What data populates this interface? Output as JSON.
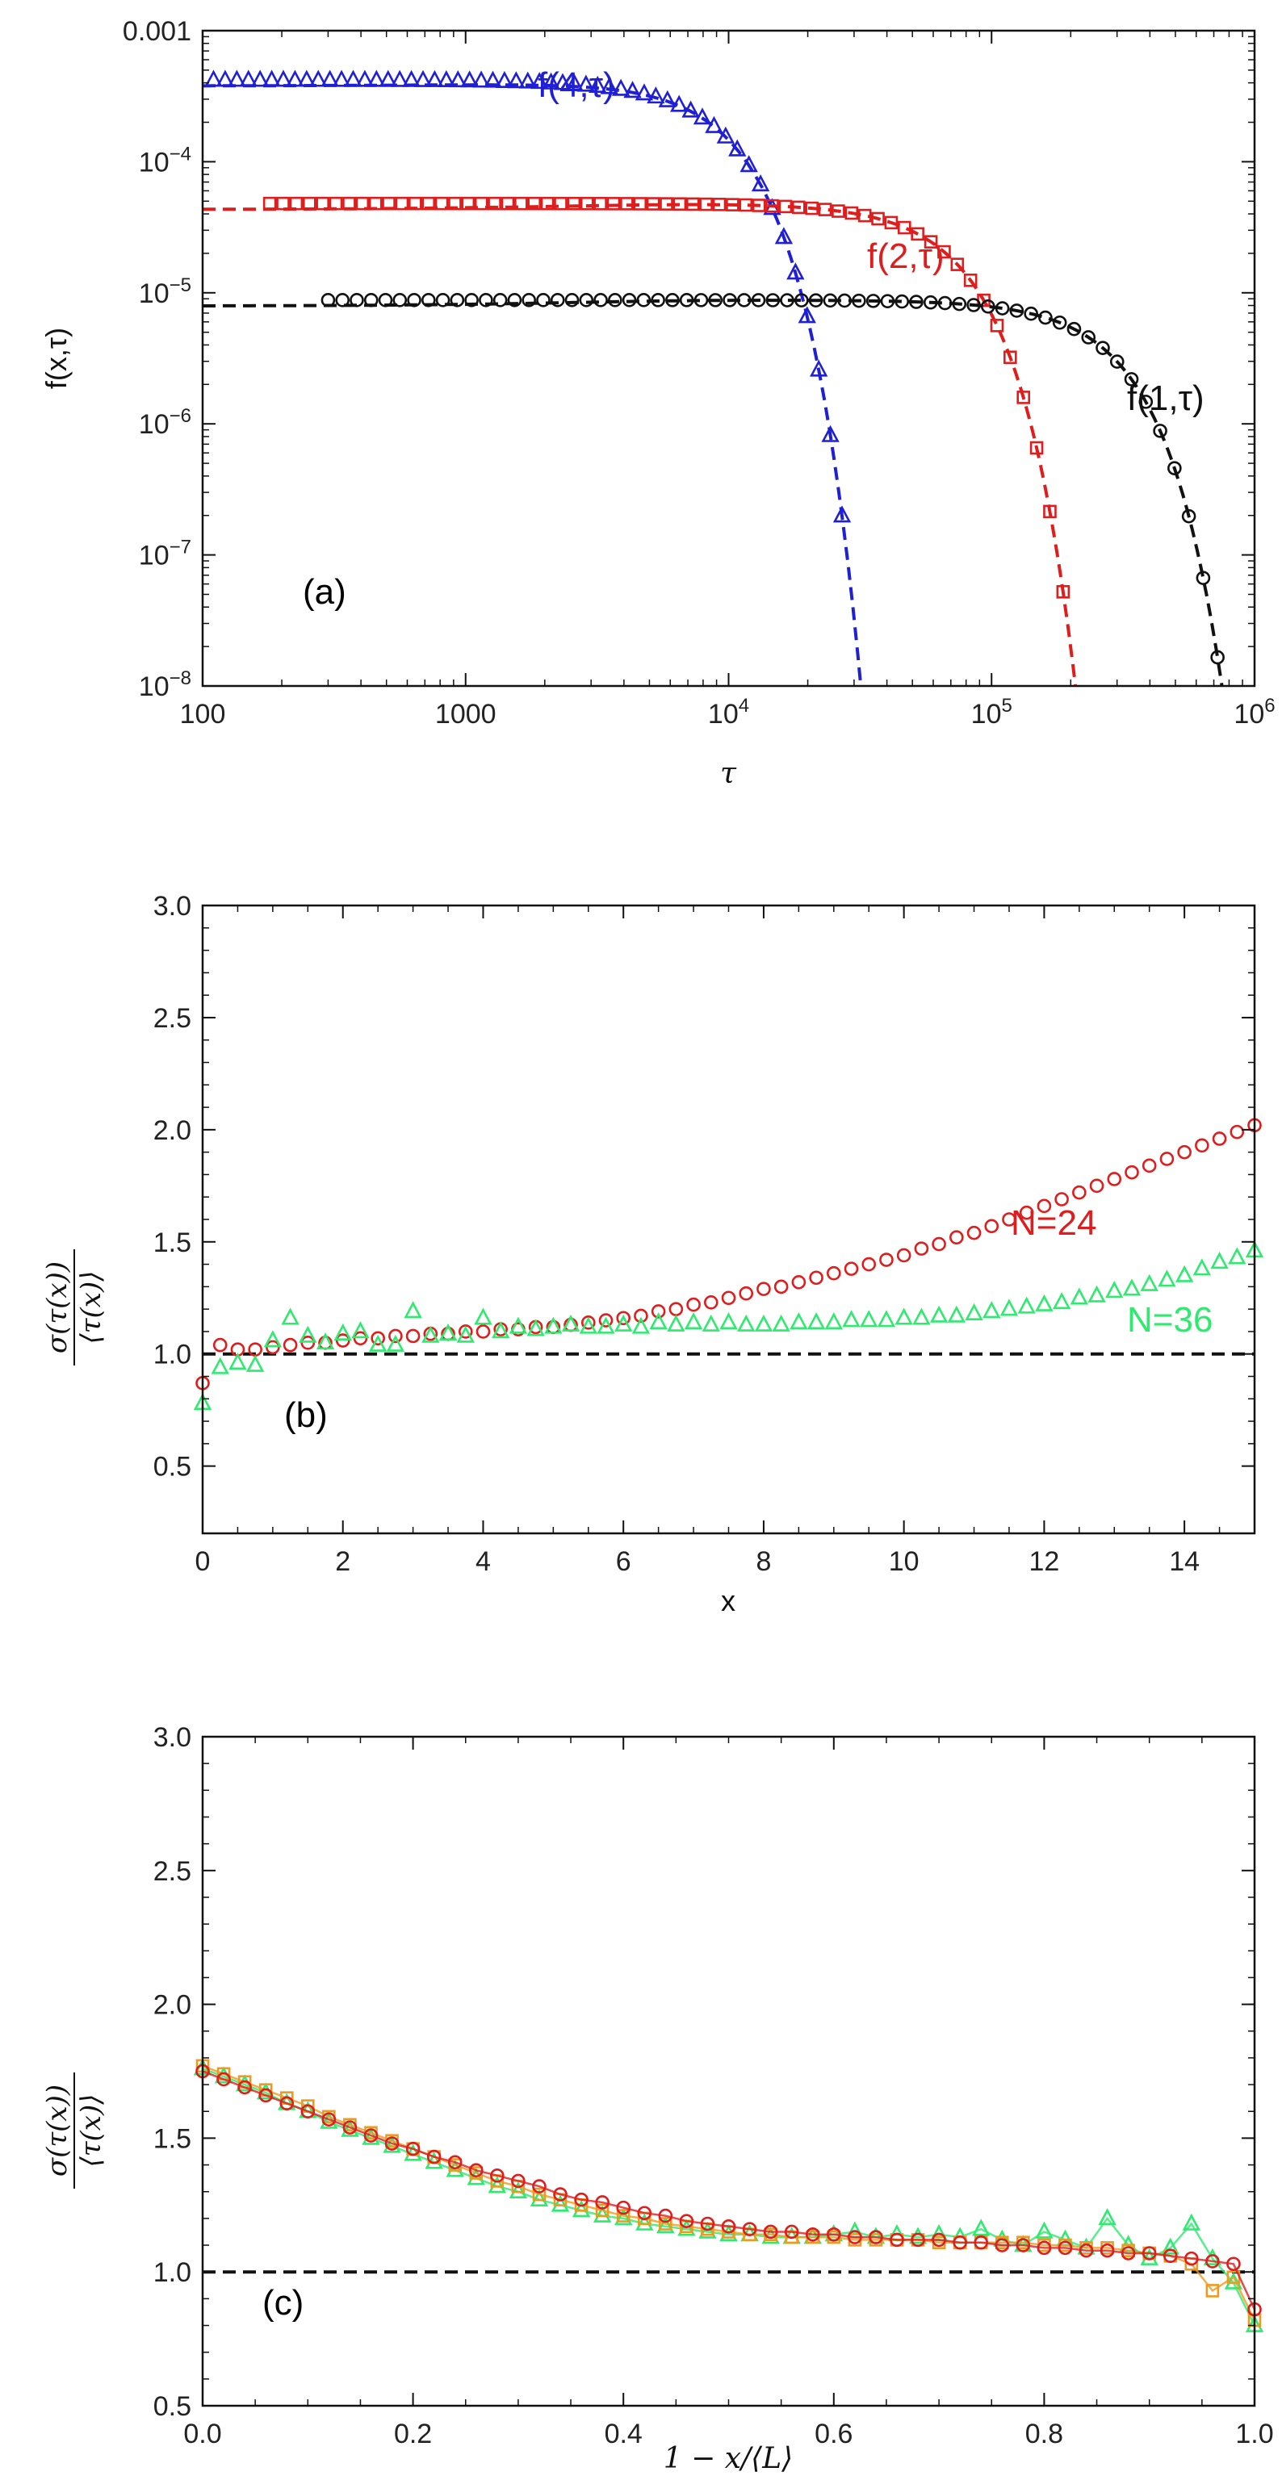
{
  "colors": {
    "black": "#111111",
    "blue": "#1f1fd6",
    "red": "#e01d1d",
    "green": "#2eea6f",
    "orange": "#ee9a1e"
  },
  "chart_data": [
    {
      "type": "scatter",
      "panel_label": "(a)",
      "xlabel": "τ",
      "ylabel": "f(x,τ)",
      "xscale": "log",
      "yscale": "log",
      "xlim": [
        100,
        1000000
      ],
      "ylim": [
        1e-08,
        0.001
      ],
      "x_tick_labels": [
        {
          "label": "100",
          "value": 100
        },
        {
          "label": "1000",
          "value": 1000
        },
        {
          "label": "10^4",
          "value": 10000
        },
        {
          "label": "10^5",
          "value": 100000
        },
        {
          "label": "10^6",
          "value": 1000000
        }
      ],
      "y_tick_labels": [
        {
          "label": "0.001",
          "value": 0.001
        },
        {
          "label": "10^-4",
          "value": 0.0001
        },
        {
          "label": "10^-5",
          "value": 1e-05
        },
        {
          "label": "10^-6",
          "value": 1e-06
        },
        {
          "label": "10^-7",
          "value": 1e-07
        },
        {
          "label": "10^-8",
          "value": 1e-08
        }
      ],
      "series": [
        {
          "name": "f(4,τ)",
          "marker": "triangle",
          "color": "#1f1fd6",
          "A": 0.00042,
          "c": 1.05e-08,
          "xmin": 110,
          "xmax": 27000
        },
        {
          "name": "f(2,τ)",
          "marker": "square",
          "color": "#e01d1d",
          "A": 4.8e-05,
          "c": 1.95e-10,
          "xmin": 180,
          "xmax": 210000
        },
        {
          "name": "f(1,τ)",
          "marker": "circle",
          "color": "#111111",
          "A": 8.8e-06,
          "c": 1.2e-11,
          "xmin": 300,
          "xmax": 820000
        }
      ],
      "annotations": [
        {
          "text": "f(4,τ)",
          "color": "#1f1fd6"
        },
        {
          "text": "f(2,τ)",
          "color": "#e01d1d"
        },
        {
          "text": "f(1,τ)",
          "color": "#111111"
        }
      ]
    },
    {
      "type": "scatter",
      "panel_label": "(b)",
      "xlabel": "x",
      "ylabel": "σ(τ(x)) / ⟨τ(x)⟩",
      "xlim": [
        0,
        15
      ],
      "ylim": [
        0.2,
        3.0
      ],
      "x_ticks": [
        0,
        2,
        4,
        6,
        8,
        10,
        12,
        14
      ],
      "y_ticks": [
        0.5,
        1.0,
        1.5,
        2.0,
        2.5,
        3.0
      ],
      "reference_line": 1.0,
      "series": [
        {
          "name": "N=24",
          "marker": "circle",
          "color": "#e01d1d",
          "x": [
            0.0,
            0.25,
            0.5,
            0.75,
            1.0,
            1.25,
            1.5,
            1.75,
            2.0,
            2.25,
            2.5,
            2.75,
            3.0,
            3.25,
            3.5,
            3.75,
            4.0,
            4.25,
            4.5,
            4.75,
            5.0,
            5.25,
            5.5,
            5.75,
            6.0,
            6.25,
            6.5,
            6.75,
            7.0,
            7.25,
            7.5,
            7.75,
            8.0,
            8.25,
            8.5,
            8.75,
            9.0,
            9.25,
            9.5,
            9.75,
            10.0,
            10.25,
            10.5,
            10.75,
            11.0,
            11.25,
            11.5,
            11.75,
            12.0,
            12.25,
            12.5,
            12.75,
            13.0,
            13.25,
            13.5,
            13.75,
            14.0,
            14.25,
            14.5,
            14.75,
            15.0
          ],
          "y": [
            0.87,
            1.04,
            1.02,
            1.02,
            1.03,
            1.04,
            1.05,
            1.05,
            1.06,
            1.07,
            1.07,
            1.08,
            1.08,
            1.09,
            1.09,
            1.1,
            1.1,
            1.11,
            1.11,
            1.12,
            1.12,
            1.13,
            1.14,
            1.15,
            1.16,
            1.17,
            1.19,
            1.2,
            1.22,
            1.23,
            1.25,
            1.27,
            1.29,
            1.3,
            1.32,
            1.34,
            1.36,
            1.38,
            1.4,
            1.42,
            1.44,
            1.47,
            1.49,
            1.52,
            1.54,
            1.57,
            1.6,
            1.63,
            1.66,
            1.69,
            1.72,
            1.75,
            1.78,
            1.81,
            1.84,
            1.87,
            1.9,
            1.93,
            1.96,
            1.99,
            2.02
          ]
        },
        {
          "name": "N=36",
          "marker": "triangle",
          "color": "#2eea6f",
          "x": [
            0.0,
            0.25,
            0.5,
            0.75,
            1.0,
            1.25,
            1.5,
            1.75,
            2.0,
            2.25,
            2.5,
            2.75,
            3.0,
            3.25,
            3.5,
            3.75,
            4.0,
            4.25,
            4.5,
            4.75,
            5.0,
            5.25,
            5.5,
            5.75,
            6.0,
            6.25,
            6.5,
            6.75,
            7.0,
            7.25,
            7.5,
            7.75,
            8.0,
            8.25,
            8.5,
            8.75,
            9.0,
            9.25,
            9.5,
            9.75,
            10.0,
            10.25,
            10.5,
            10.75,
            11.0,
            11.25,
            11.5,
            11.75,
            12.0,
            12.25,
            12.5,
            12.75,
            13.0,
            13.25,
            13.5,
            13.75,
            14.0,
            14.25,
            14.5,
            14.75,
            15.0
          ],
          "y": [
            0.78,
            0.94,
            0.96,
            0.95,
            1.06,
            1.16,
            1.08,
            1.05,
            1.09,
            1.1,
            1.04,
            1.04,
            1.19,
            1.08,
            1.09,
            1.08,
            1.16,
            1.1,
            1.12,
            1.11,
            1.12,
            1.13,
            1.12,
            1.12,
            1.13,
            1.12,
            1.14,
            1.13,
            1.14,
            1.13,
            1.14,
            1.13,
            1.13,
            1.13,
            1.14,
            1.14,
            1.14,
            1.15,
            1.15,
            1.15,
            1.16,
            1.16,
            1.17,
            1.17,
            1.18,
            1.19,
            1.2,
            1.21,
            1.22,
            1.23,
            1.25,
            1.26,
            1.28,
            1.29,
            1.31,
            1.33,
            1.35,
            1.38,
            1.41,
            1.43,
            1.46
          ]
        }
      ],
      "annotations": [
        {
          "text": "N=24",
          "color": "#e01d1d"
        },
        {
          "text": "N=36",
          "color": "#2eea6f"
        }
      ]
    },
    {
      "type": "scatter",
      "panel_label": "(c)",
      "xlabel": "1 − x/⟨L⟩",
      "ylabel": "σ(τ(x)) / ⟨τ(x)⟩",
      "xlim": [
        0,
        1
      ],
      "ylim": [
        0.5,
        3.0
      ],
      "x_ticks": [
        0.0,
        0.2,
        0.4,
        0.6,
        0.8,
        1.0
      ],
      "y_ticks": [
        0.5,
        1.0,
        1.5,
        2.0,
        2.5,
        3.0
      ],
      "reference_line": 1.0,
      "series": [
        {
          "name": "green",
          "marker": "triangle",
          "color": "#2eea6f",
          "x": [
            0.0,
            0.02,
            0.04,
            0.06,
            0.08,
            0.1,
            0.12,
            0.14,
            0.16,
            0.18,
            0.2,
            0.22,
            0.24,
            0.26,
            0.28,
            0.3,
            0.32,
            0.34,
            0.36,
            0.38,
            0.4,
            0.42,
            0.44,
            0.46,
            0.48,
            0.5,
            0.52,
            0.54,
            0.56,
            0.58,
            0.6,
            0.62,
            0.64,
            0.66,
            0.68,
            0.7,
            0.72,
            0.74,
            0.76,
            0.78,
            0.8,
            0.82,
            0.84,
            0.86,
            0.88,
            0.9,
            0.92,
            0.94,
            0.96,
            0.98,
            1.0
          ],
          "y": [
            1.76,
            1.73,
            1.7,
            1.67,
            1.63,
            1.6,
            1.56,
            1.53,
            1.5,
            1.47,
            1.44,
            1.41,
            1.38,
            1.35,
            1.32,
            1.3,
            1.27,
            1.25,
            1.23,
            1.21,
            1.2,
            1.18,
            1.17,
            1.16,
            1.15,
            1.14,
            1.14,
            1.13,
            1.13,
            1.13,
            1.14,
            1.15,
            1.13,
            1.14,
            1.13,
            1.14,
            1.13,
            1.16,
            1.12,
            1.1,
            1.15,
            1.12,
            1.09,
            1.2,
            1.1,
            1.05,
            1.09,
            1.18,
            1.05,
            0.96,
            0.8
          ]
        },
        {
          "name": "orange",
          "marker": "square",
          "color": "#ee9a1e",
          "x": [
            0.0,
            0.02,
            0.04,
            0.06,
            0.08,
            0.1,
            0.12,
            0.14,
            0.16,
            0.18,
            0.2,
            0.22,
            0.24,
            0.26,
            0.28,
            0.3,
            0.32,
            0.34,
            0.36,
            0.38,
            0.4,
            0.42,
            0.44,
            0.46,
            0.48,
            0.5,
            0.52,
            0.54,
            0.56,
            0.58,
            0.6,
            0.62,
            0.64,
            0.66,
            0.68,
            0.7,
            0.72,
            0.74,
            0.76,
            0.78,
            0.8,
            0.82,
            0.84,
            0.86,
            0.88,
            0.9,
            0.92,
            0.94,
            0.96,
            0.98,
            1.0
          ],
          "y": [
            1.77,
            1.74,
            1.71,
            1.68,
            1.65,
            1.62,
            1.58,
            1.55,
            1.52,
            1.49,
            1.46,
            1.43,
            1.4,
            1.37,
            1.34,
            1.32,
            1.29,
            1.27,
            1.25,
            1.23,
            1.21,
            1.2,
            1.18,
            1.17,
            1.16,
            1.15,
            1.14,
            1.14,
            1.13,
            1.13,
            1.13,
            1.12,
            1.12,
            1.12,
            1.12,
            1.11,
            1.11,
            1.11,
            1.11,
            1.11,
            1.1,
            1.1,
            1.09,
            1.09,
            1.08,
            1.07,
            1.06,
            1.03,
            0.93,
            0.98,
            0.82
          ]
        },
        {
          "name": "red",
          "marker": "circle",
          "color": "#e01d1d",
          "x": [
            0.0,
            0.02,
            0.04,
            0.06,
            0.08,
            0.1,
            0.12,
            0.14,
            0.16,
            0.18,
            0.2,
            0.22,
            0.24,
            0.26,
            0.28,
            0.3,
            0.32,
            0.34,
            0.36,
            0.38,
            0.4,
            0.42,
            0.44,
            0.46,
            0.48,
            0.5,
            0.52,
            0.54,
            0.56,
            0.58,
            0.6,
            0.62,
            0.64,
            0.66,
            0.68,
            0.7,
            0.72,
            0.74,
            0.76,
            0.78,
            0.8,
            0.82,
            0.84,
            0.86,
            0.88,
            0.9,
            0.92,
            0.94,
            0.96,
            0.98,
            1.0
          ],
          "y": [
            1.75,
            1.72,
            1.69,
            1.66,
            1.63,
            1.6,
            1.57,
            1.54,
            1.51,
            1.48,
            1.46,
            1.43,
            1.41,
            1.38,
            1.36,
            1.34,
            1.32,
            1.29,
            1.27,
            1.26,
            1.24,
            1.22,
            1.21,
            1.19,
            1.18,
            1.17,
            1.16,
            1.15,
            1.15,
            1.14,
            1.14,
            1.13,
            1.13,
            1.12,
            1.12,
            1.12,
            1.11,
            1.11,
            1.1,
            1.1,
            1.09,
            1.09,
            1.08,
            1.08,
            1.07,
            1.07,
            1.06,
            1.05,
            1.04,
            1.03,
            0.86
          ]
        }
      ]
    }
  ]
}
